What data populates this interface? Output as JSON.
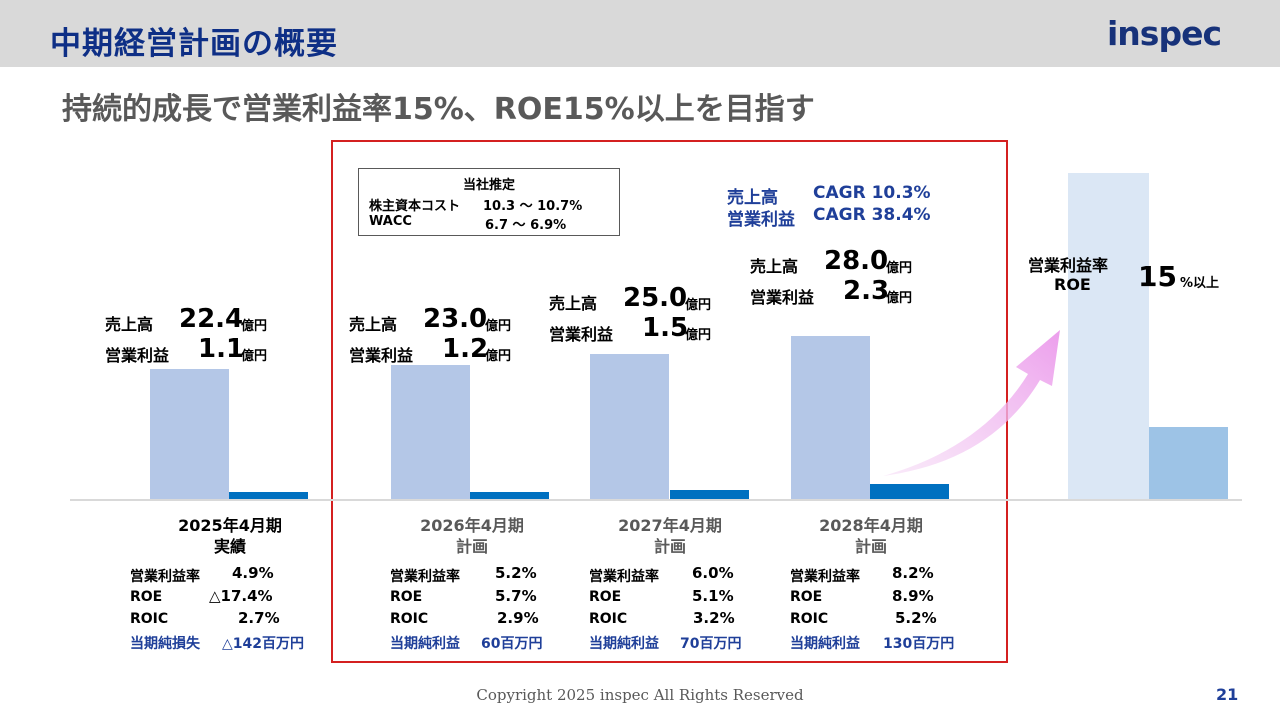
{
  "header": {
    "title": "中期経営計画の概要",
    "logo": "inspec"
  },
  "subtitle": "持続的成長で営業利益率15%、ROE15%以上を目指す",
  "estimate_note": {
    "title": "当社推定",
    "rows": [
      {
        "label": "株主資本コスト",
        "value": "10.3 ～ 10.7%"
      },
      {
        "label": "WACC",
        "value": "6.7 ～  6.9%"
      }
    ]
  },
  "cagr": {
    "sales_label": "売上高",
    "sales_value": "CAGR 10.3%",
    "op_label": "営業利益",
    "op_value": "CAGR 38.4%"
  },
  "value_labels": {
    "sales": "売上高",
    "op": "営業利益",
    "unit": "億円"
  },
  "metric_labels": {
    "op_margin": "営業利益率",
    "roe": "ROE",
    "roic": "ROIC"
  },
  "chart_data": {
    "type": "bar",
    "categories": [
      "2025年4月期 実績",
      "2026年4月期 計画",
      "2027年4月期 計画",
      "2028年4月期 計画"
    ],
    "series": [
      {
        "name": "売上高",
        "values": [
          22.4,
          23.0,
          25.0,
          28.0
        ]
      },
      {
        "name": "営業利益",
        "values": [
          1.1,
          1.2,
          1.5,
          2.3
        ]
      }
    ],
    "unit": "億円",
    "periods": [
      {
        "year": "2025年4月期",
        "kind": "実績",
        "sales": "22.4",
        "op": "1.1",
        "op_margin": "4.9%",
        "roe": "△17.4%",
        "roic": "2.7%",
        "net_label": "当期純損失",
        "net_value": "△142百万円"
      },
      {
        "year": "2026年4月期",
        "kind": "計画",
        "sales": "23.0",
        "op": "1.2",
        "op_margin": "5.2%",
        "roe": "5.7%",
        "roic": "2.9%",
        "net_label": "当期純利益",
        "net_value": "60百万円"
      },
      {
        "year": "2027年4月期",
        "kind": "計画",
        "sales": "25.0",
        "op": "1.5",
        "op_margin": "6.0%",
        "roe": "5.1%",
        "roic": "3.2%",
        "net_label": "当期純利益",
        "net_value": "70百万円"
      },
      {
        "year": "2028年4月期",
        "kind": "計画",
        "sales": "28.0",
        "op": "2.3",
        "op_margin": "8.2%",
        "roe": "8.9%",
        "roic": "5.2%",
        "net_label": "当期純利益",
        "net_value": "130百万円"
      }
    ],
    "target": {
      "label_line1": "営業利益率",
      "label_line2": "ROE",
      "value": "15",
      "unit": "%以上",
      "op_margin_pct": 15
    }
  },
  "footer": {
    "copyright": "Copyright 2025 inspec All Rights Reserved",
    "page": "21"
  }
}
